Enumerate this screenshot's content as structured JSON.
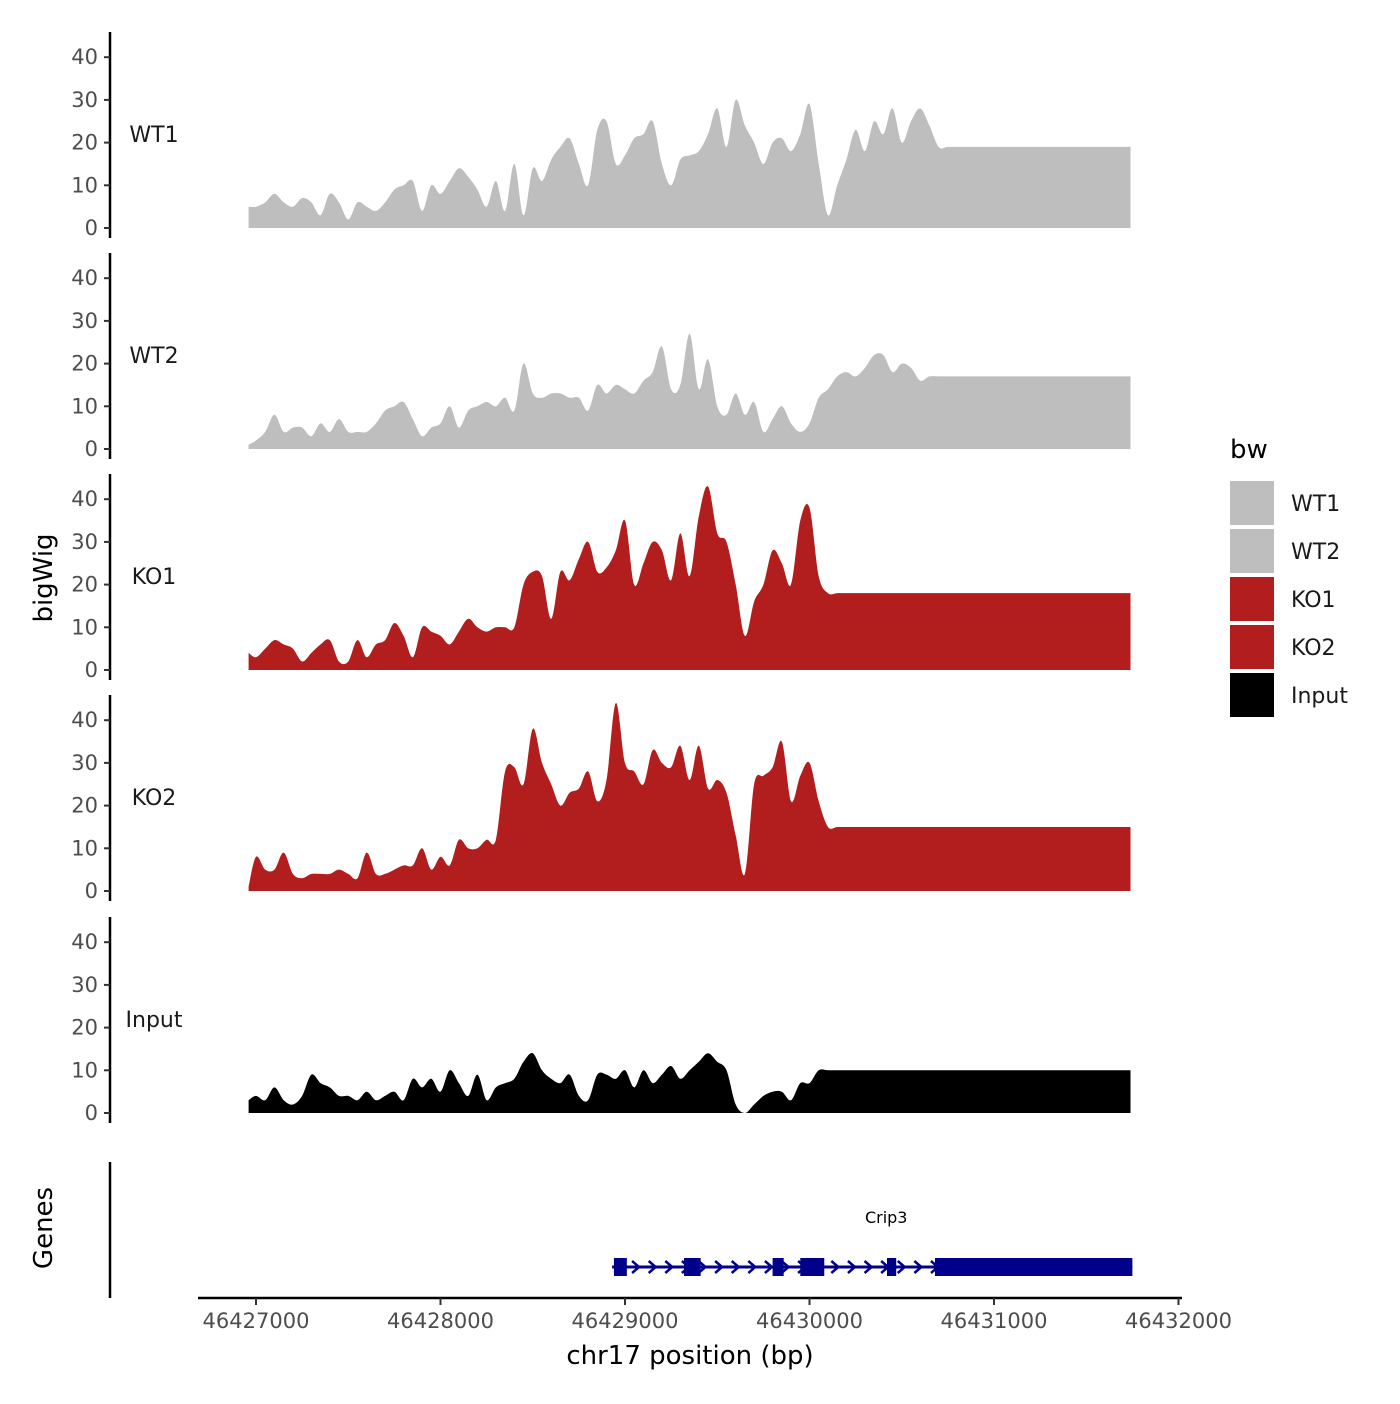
{
  "chart_data": {
    "type": "area",
    "title": "",
    "ylabel": "bigWig",
    "xlabel": "chr17 position (bp)",
    "xlim": [
      46426750,
      46432000
    ],
    "ylim": [
      0,
      45
    ],
    "y_ticks": [
      0,
      10,
      20,
      30,
      40
    ],
    "x_ticks": [
      46427000,
      46428000,
      46429000,
      46430000,
      46431000,
      46432000
    ],
    "x_tick_labels": [
      "46427000",
      "46428000",
      "46429000",
      "46430000",
      "46431000",
      "46432000"
    ],
    "legend": {
      "title": "bw",
      "position": "right",
      "entries": [
        {
          "label": "WT1",
          "color": "#bebebe"
        },
        {
          "label": "WT2",
          "color": "#bebebe"
        },
        {
          "label": "KO1",
          "color": "#b21e1e"
        },
        {
          "label": "KO2",
          "color": "#b21e1e"
        },
        {
          "label": "Input",
          "color": "#000000"
        }
      ]
    },
    "tracks": [
      {
        "name": "WT1",
        "color": "#bebebe",
        "x": [
          46426960,
          46427000,
          46427050,
          46427100,
          46427150,
          46427200,
          46427250,
          46427300,
          46427350,
          46427400,
          46427450,
          46427500,
          46427550,
          46427600,
          46427650,
          46427700,
          46427750,
          46427800,
          46427850,
          46427900,
          46427950,
          46428000,
          46428050,
          46428100,
          46428150,
          46428200,
          46428250,
          46428300,
          46428350,
          46428400,
          46428450,
          46428500,
          46428550,
          46428600,
          46428650,
          46428700,
          46428750,
          46428800,
          46428850,
          46428900,
          46428950,
          46429000,
          46429050,
          46429100,
          46429150,
          46429200,
          46429250,
          46429300,
          46429350,
          46429400,
          46429450,
          46429500,
          46429550,
          46429600,
          46429650,
          46429700,
          46429750,
          46429800,
          46429850,
          46429900,
          46429950,
          46430000,
          46430050,
          46430100,
          46430150,
          46430200,
          46430250,
          46430300,
          46430350,
          46430400,
          46430450,
          46430500,
          46430550,
          46430600,
          46430650,
          46430700,
          46430750,
          46430800,
          46430850,
          46430900,
          46430950,
          46431000,
          46431050,
          46431100,
          46431150,
          46431200,
          46431250,
          46431300,
          46431350,
          46431400,
          46431450,
          46431500,
          46431550,
          46431600,
          46431650,
          46431700,
          46431740
        ],
        "y": [
          5,
          5,
          6,
          8,
          6,
          5,
          7,
          6,
          3,
          8,
          6,
          2,
          6,
          5,
          4,
          6,
          9,
          10,
          11,
          4,
          10,
          8,
          11,
          14,
          12,
          9,
          5,
          11,
          4,
          15,
          3,
          14,
          11,
          16,
          19,
          21,
          15,
          10,
          23,
          25,
          15,
          17,
          21,
          22,
          25,
          15,
          10,
          16,
          17,
          18,
          22,
          28,
          19,
          30,
          24,
          20,
          15,
          20,
          21,
          18,
          22,
          29,
          15,
          3,
          10,
          16,
          23,
          18,
          25,
          22,
          28,
          20,
          25,
          28,
          24,
          19,
          19,
          19,
          19,
          19,
          19,
          19,
          19,
          19,
          19,
          19,
          19,
          19,
          19,
          19,
          19,
          19,
          19,
          19,
          19,
          19,
          19
        ]
      },
      {
        "name": "WT2",
        "color": "#bebebe",
        "x": [
          46426960,
          46427000,
          46427050,
          46427100,
          46427150,
          46427200,
          46427250,
          46427300,
          46427350,
          46427400,
          46427450,
          46427500,
          46427550,
          46427600,
          46427650,
          46427700,
          46427750,
          46427800,
          46427850,
          46427900,
          46427950,
          46428000,
          46428050,
          46428100,
          46428150,
          46428200,
          46428250,
          46428300,
          46428350,
          46428400,
          46428450,
          46428500,
          46428550,
          46428600,
          46428650,
          46428700,
          46428750,
          46428800,
          46428850,
          46428900,
          46428950,
          46429000,
          46429050,
          46429100,
          46429150,
          46429200,
          46429250,
          46429300,
          46429350,
          46429400,
          46429450,
          46429500,
          46429550,
          46429600,
          46429650,
          46429700,
          46429750,
          46429800,
          46429850,
          46429900,
          46429950,
          46430000,
          46430050,
          46430100,
          46430150,
          46430200,
          46430250,
          46430300,
          46430350,
          46430400,
          46430450,
          46430500,
          46430550,
          46430600,
          46430650,
          46430700,
          46430750,
          46430800,
          46430850,
          46430900,
          46430950,
          46431000,
          46431050,
          46431100,
          46431150,
          46431200,
          46431250,
          46431300,
          46431350,
          46431400,
          46431450,
          46431500,
          46431550,
          46431600,
          46431650,
          46431700,
          46431740
        ],
        "y": [
          1,
          2,
          4,
          8,
          4,
          5,
          5,
          3,
          6,
          4,
          7,
          4,
          4,
          4,
          6,
          9,
          10,
          11,
          7,
          3,
          5,
          6,
          10,
          5,
          9,
          10,
          11,
          10,
          12,
          9,
          20,
          13,
          12,
          13,
          13,
          12,
          12,
          9,
          15,
          13,
          15,
          14,
          13,
          16,
          18,
          24,
          14,
          15,
          27,
          14,
          21,
          10,
          8,
          13,
          8,
          11,
          4,
          7,
          10,
          6,
          4,
          6,
          12,
          14,
          17,
          18,
          17,
          19,
          22,
          22,
          18,
          20,
          19,
          16,
          17,
          17,
          17,
          17,
          17,
          17,
          17,
          17,
          17,
          17,
          17,
          17,
          17,
          17,
          17,
          17,
          17,
          17,
          17,
          17,
          17,
          17,
          17
        ]
      },
      {
        "name": "KO1",
        "color": "#b21e1e",
        "x": [
          46426960,
          46427000,
          46427050,
          46427100,
          46427150,
          46427200,
          46427250,
          46427300,
          46427350,
          46427400,
          46427450,
          46427500,
          46427550,
          46427600,
          46427650,
          46427700,
          46427750,
          46427800,
          46427850,
          46427900,
          46427950,
          46428000,
          46428050,
          46428100,
          46428150,
          46428200,
          46428250,
          46428300,
          46428350,
          46428400,
          46428450,
          46428500,
          46428550,
          46428600,
          46428650,
          46428700,
          46428750,
          46428800,
          46428850,
          46428900,
          46428950,
          46429000,
          46429050,
          46429100,
          46429150,
          46429200,
          46429250,
          46429300,
          46429350,
          46429400,
          46429450,
          46429500,
          46429550,
          46429600,
          46429650,
          46429700,
          46429750,
          46429800,
          46429850,
          46429900,
          46429950,
          46430000,
          46430050,
          46430100,
          46430150,
          46430200,
          46430250,
          46430300,
          46430350,
          46430400,
          46430450,
          46430500,
          46430550,
          46430600,
          46430650,
          46430700,
          46430750,
          46430800,
          46430850,
          46430900,
          46430950,
          46431000,
          46431050,
          46431100,
          46431150,
          46431200,
          46431250,
          46431300,
          46431350,
          46431400,
          46431450,
          46431500,
          46431550,
          46431600,
          46431650,
          46431700,
          46431740
        ],
        "y": [
          4,
          3,
          5,
          7,
          6,
          5,
          2,
          4,
          6,
          7,
          2,
          2,
          7,
          3,
          6,
          7,
          11,
          8,
          3,
          10,
          9,
          8,
          6,
          9,
          12,
          10,
          9,
          10,
          10,
          10,
          20,
          23,
          22,
          12,
          23,
          21,
          26,
          30,
          23,
          24,
          28,
          35,
          20,
          25,
          30,
          28,
          21,
          32,
          22,
          36,
          43,
          32,
          30,
          20,
          8,
          16,
          20,
          28,
          25,
          20,
          35,
          38,
          22,
          18,
          18,
          18,
          18,
          18,
          18,
          18,
          18,
          18,
          18,
          18,
          18,
          18,
          18,
          18,
          18,
          18,
          18,
          18,
          18,
          18,
          18,
          18,
          18,
          18,
          18,
          18,
          18,
          18,
          18,
          18,
          18,
          18,
          18
        ]
      },
      {
        "name": "KO2",
        "color": "#b21e1e",
        "x": [
          46426960,
          46427000,
          46427050,
          46427100,
          46427150,
          46427200,
          46427250,
          46427300,
          46427350,
          46427400,
          46427450,
          46427500,
          46427550,
          46427600,
          46427650,
          46427700,
          46427750,
          46427800,
          46427850,
          46427900,
          46427950,
          46428000,
          46428050,
          46428100,
          46428150,
          46428200,
          46428250,
          46428300,
          46428350,
          46428400,
          46428450,
          46428500,
          46428550,
          46428600,
          46428650,
          46428700,
          46428750,
          46428800,
          46428850,
          46428900,
          46428950,
          46429000,
          46429050,
          46429100,
          46429150,
          46429200,
          46429250,
          46429300,
          46429350,
          46429400,
          46429450,
          46429500,
          46429550,
          46429600,
          46429650,
          46429700,
          46429750,
          46429800,
          46429850,
          46429900,
          46429950,
          46430000,
          46430050,
          46430100,
          46430150,
          46430200,
          46430250,
          46430300,
          46430350,
          46430400,
          46430450,
          46430500,
          46430550,
          46430600,
          46430650,
          46430700,
          46430750,
          46430800,
          46430850,
          46430900,
          46430950,
          46431000,
          46431050,
          46431100,
          46431150,
          46431200,
          46431250,
          46431300,
          46431350,
          46431400,
          46431450,
          46431500,
          46431550,
          46431600,
          46431650,
          46431700,
          46431740
        ],
        "y": [
          1,
          8,
          5,
          5,
          9,
          4,
          3,
          4,
          4,
          4,
          5,
          4,
          3,
          9,
          4,
          4,
          5,
          6,
          6,
          10,
          5,
          8,
          6,
          12,
          10,
          10,
          12,
          12,
          28,
          29,
          25,
          38,
          30,
          25,
          20,
          23,
          24,
          28,
          21,
          26,
          44,
          30,
          28,
          25,
          33,
          30,
          29,
          34,
          26,
          34,
          24,
          26,
          23,
          13,
          4,
          25,
          27,
          29,
          35,
          21,
          27,
          30,
          21,
          15,
          15,
          15,
          15,
          15,
          15,
          15,
          15,
          15,
          15,
          15,
          15,
          15,
          15,
          15,
          15,
          15,
          15,
          15,
          15,
          15,
          15,
          15,
          15,
          15,
          15,
          15,
          15,
          15,
          15,
          15,
          15,
          15,
          15
        ]
      },
      {
        "name": "Input",
        "color": "#000000",
        "x": [
          46426960,
          46427000,
          46427050,
          46427100,
          46427150,
          46427200,
          46427250,
          46427300,
          46427350,
          46427400,
          46427450,
          46427500,
          46427550,
          46427600,
          46427650,
          46427700,
          46427750,
          46427800,
          46427850,
          46427900,
          46427950,
          46428000,
          46428050,
          46428100,
          46428150,
          46428200,
          46428250,
          46428300,
          46428350,
          46428400,
          46428450,
          46428500,
          46428550,
          46428600,
          46428650,
          46428700,
          46428750,
          46428800,
          46428850,
          46428900,
          46428950,
          46429000,
          46429050,
          46429100,
          46429150,
          46429200,
          46429250,
          46429300,
          46429350,
          46429400,
          46429450,
          46429500,
          46429550,
          46429600,
          46429650,
          46429700,
          46429750,
          46429800,
          46429850,
          46429900,
          46429950,
          46430000,
          46430050,
          46430100,
          46430150,
          46430200,
          46430250,
          46430300,
          46430350,
          46430400,
          46430450,
          46430500,
          46430550,
          46430600,
          46430650,
          46430700,
          46430750,
          46430800,
          46430850,
          46430900,
          46430950,
          46431000,
          46431050,
          46431100,
          46431150,
          46431200,
          46431250,
          46431300,
          46431350,
          46431400,
          46431450,
          46431500,
          46431550,
          46431600,
          46431650,
          46431700,
          46431740
        ],
        "y": [
          3,
          4,
          3,
          6,
          3,
          2,
          4,
          9,
          7,
          6,
          4,
          4,
          3,
          5,
          3,
          4,
          5,
          3,
          8,
          6,
          8,
          5,
          10,
          7,
          4,
          9,
          3,
          6,
          7,
          8,
          12,
          14,
          10,
          8,
          7,
          9,
          4,
          3,
          9,
          9,
          8,
          10,
          6,
          10,
          7,
          9,
          11,
          8,
          10,
          12,
          14,
          12,
          10,
          2,
          0,
          2,
          4,
          5,
          5,
          3,
          7,
          7,
          10,
          10,
          10,
          10,
          10,
          10,
          10,
          10,
          10,
          10,
          10,
          10,
          10,
          10,
          10,
          10,
          10,
          10,
          10,
          10,
          10,
          10,
          10,
          10,
          10,
          10,
          10,
          10,
          10,
          10,
          10,
          10,
          10,
          10,
          10
        ]
      }
    ],
    "genes": {
      "title": "Genes",
      "name": "Crip3",
      "strand": "+",
      "color": "#00008b",
      "start": 46428930,
      "end": 46431750,
      "exons": [
        {
          "start": 46428940,
          "end": 46429010
        },
        {
          "start": 46429320,
          "end": 46429410
        },
        {
          "start": 46429800,
          "end": 46429860
        },
        {
          "start": 46429950,
          "end": 46430080
        },
        {
          "start": 46430420,
          "end": 46430470
        },
        {
          "start": 46430680,
          "end": 46431750
        }
      ]
    }
  }
}
